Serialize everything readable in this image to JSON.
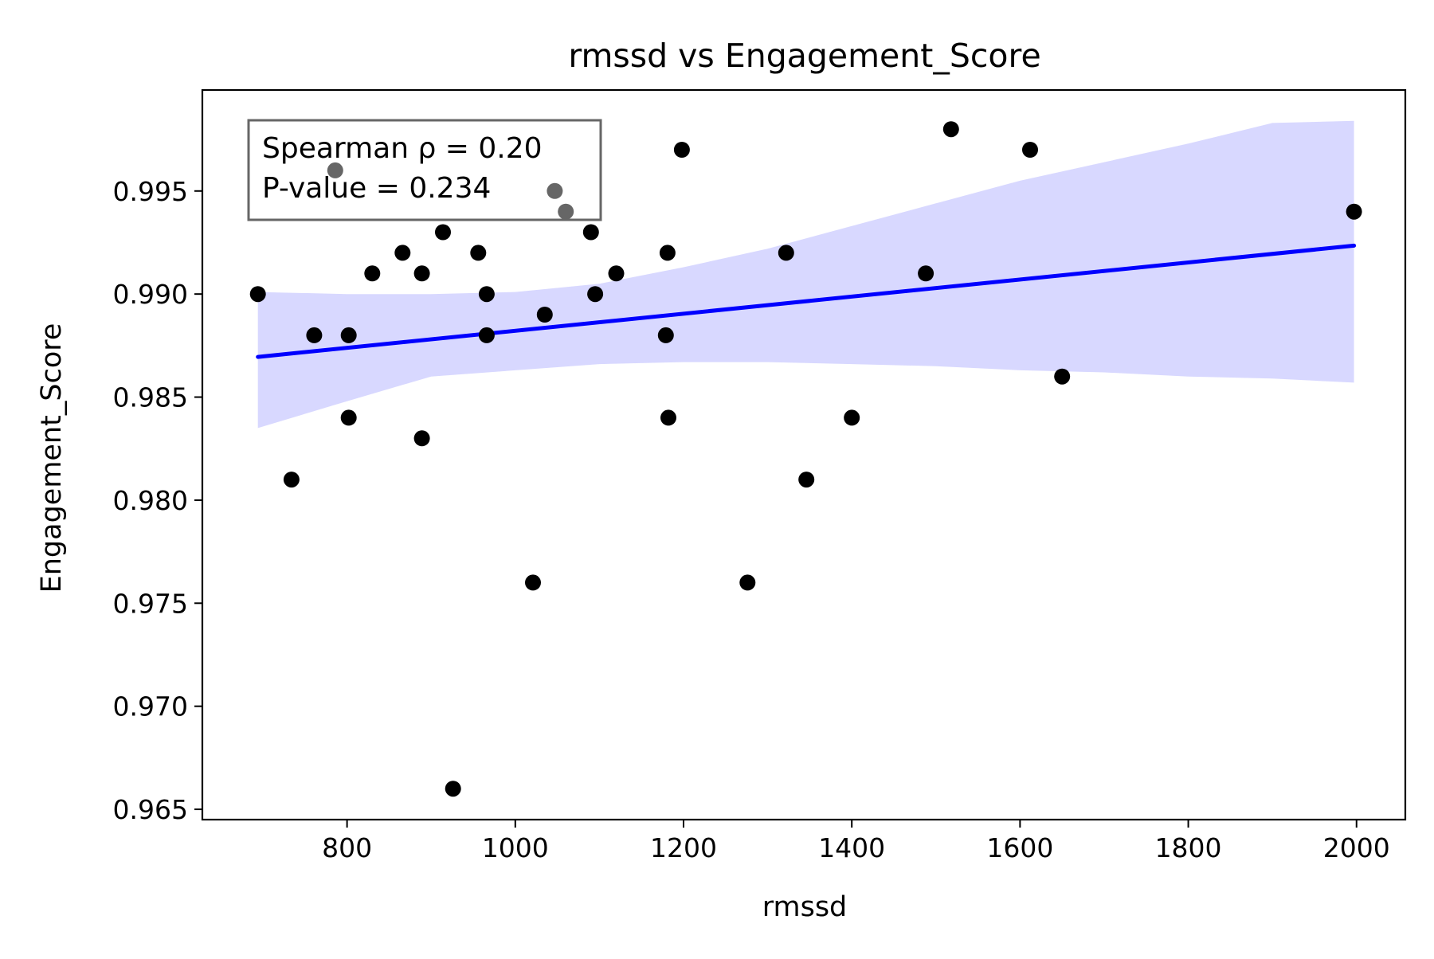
{
  "chart_data": {
    "type": "scatter",
    "title": "rmssd vs Engagement_Score",
    "xlabel": "rmssd",
    "ylabel": "Engagement_Score",
    "xlim": [
      628,
      2058
    ],
    "ylim": [
      0.9645,
      0.9999
    ],
    "xticks": [
      800,
      1000,
      1200,
      1400,
      1600,
      1800,
      2000
    ],
    "yticks": [
      0.965,
      0.97,
      0.975,
      0.98,
      0.985,
      0.99,
      0.995
    ],
    "ytick_labels": [
      "0.965",
      "0.970",
      "0.975",
      "0.980",
      "0.985",
      "0.990",
      "0.995"
    ],
    "grid": false,
    "stats": {
      "line1": "Spearman ρ = 0.20",
      "line2": "P-value = 0.234",
      "position": "top-left"
    },
    "points": {
      "x": [
        694,
        734,
        761,
        786,
        802,
        802,
        830,
        866,
        889,
        889,
        914,
        926,
        956,
        966,
        966,
        1021,
        1035,
        1047,
        1060,
        1090,
        1095,
        1120,
        1179,
        1181,
        1182,
        1198,
        1276,
        1322,
        1346,
        1400,
        1488,
        1518,
        1612,
        1650,
        1997
      ],
      "y": [
        0.99,
        0.981,
        0.988,
        0.996,
        0.988,
        0.984,
        0.991,
        0.992,
        0.991,
        0.983,
        0.993,
        0.966,
        0.992,
        0.988,
        0.99,
        0.976,
        0.989,
        0.995,
        0.994,
        0.993,
        0.99,
        0.991,
        0.988,
        0.992,
        0.984,
        0.997,
        0.976,
        0.992,
        0.981,
        0.984,
        0.991,
        0.998,
        0.997,
        0.986,
        0.994
      ],
      "color": "#000000"
    },
    "regression": {
      "x": [
        694,
        1997
      ],
      "y": [
        0.98695,
        0.99235
      ],
      "color": "#0000ff"
    },
    "confidence_band": {
      "x": [
        694,
        800,
        900,
        1000,
        1100,
        1200,
        1300,
        1400,
        1500,
        1600,
        1700,
        1800,
        1900,
        1997
      ],
      "upper": [
        0.9901,
        0.99,
        0.99,
        0.9901,
        0.9905,
        0.9913,
        0.9922,
        0.9933,
        0.9944,
        0.9955,
        0.9964,
        0.9973,
        0.9983,
        0.9984
      ],
      "lower": [
        0.9835,
        0.9848,
        0.986,
        0.9863,
        0.9866,
        0.9867,
        0.9867,
        0.9866,
        0.9865,
        0.9863,
        0.9862,
        0.986,
        0.9859,
        0.9857
      ],
      "color": "#d8d8ff"
    }
  }
}
